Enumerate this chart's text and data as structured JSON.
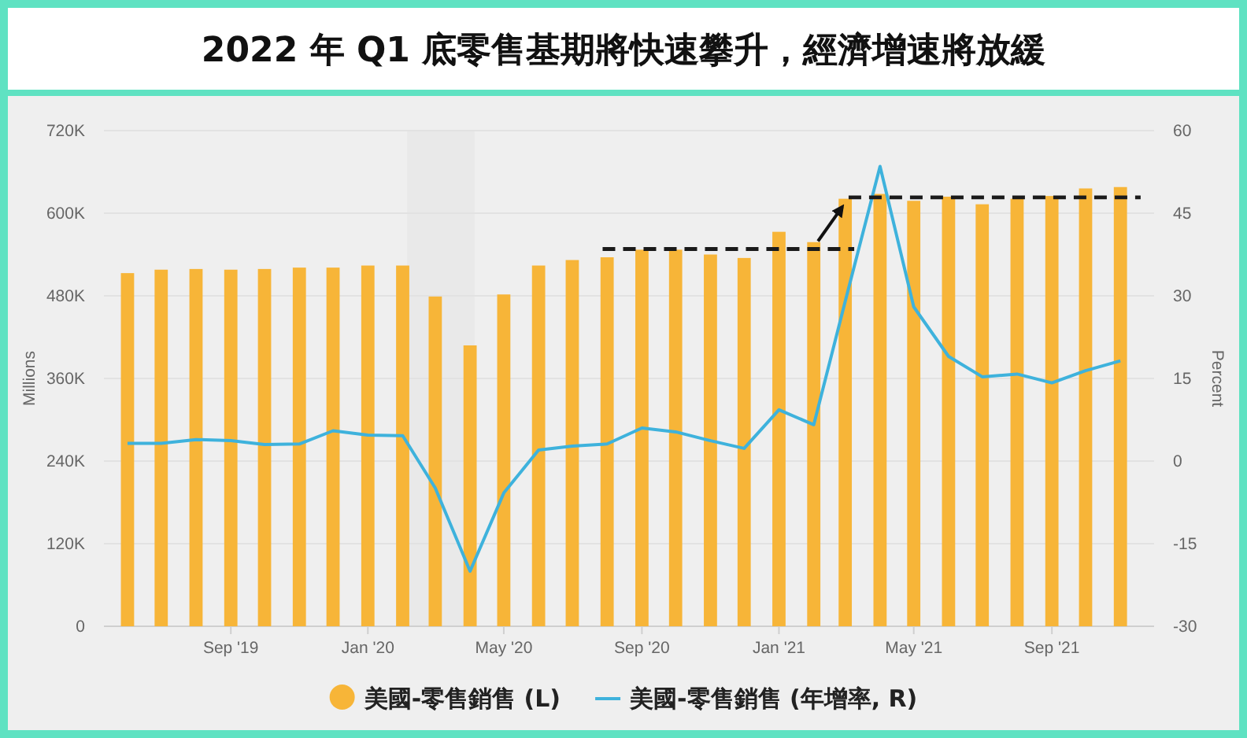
{
  "chart_data": {
    "type": "bar",
    "title": "2022 年 Q1 底零售基期將快速攀升，經濟增速將放緩",
    "ylabel": "Millions",
    "y2label": "Percent",
    "x": [
      "2019-06",
      "2019-07",
      "2019-08",
      "2019-09",
      "2019-10",
      "2019-11",
      "2019-12",
      "2020-01",
      "2020-02",
      "2020-03",
      "2020-04",
      "2020-05",
      "2020-06",
      "2020-07",
      "2020-08",
      "2020-09",
      "2020-10",
      "2020-11",
      "2020-12",
      "2021-01",
      "2021-02",
      "2021-03",
      "2021-04",
      "2021-05",
      "2021-06",
      "2021-07",
      "2021-08",
      "2021-09",
      "2021-10",
      "2021-11"
    ],
    "xlim": [
      "2019-05-11",
      "2021-12-01"
    ],
    "xticks": [
      {
        "value": "2019-09",
        "label": "Sep '19"
      },
      {
        "value": "2020-01",
        "label": "Jan '20"
      },
      {
        "value": "2020-05",
        "label": "May '20"
      },
      {
        "value": "2020-09",
        "label": "Sep '20"
      },
      {
        "value": "2021-01",
        "label": "Jan '21"
      },
      {
        "value": "2021-05",
        "label": "May '21"
      },
      {
        "value": "2021-09",
        "label": "Sep '21"
      }
    ],
    "ylim": [
      0,
      720000
    ],
    "yticks": [
      0,
      {
        "value": 120000,
        "label": "120K"
      },
      {
        "value": 240000,
        "label": "240K"
      },
      {
        "value": 360000,
        "label": "360K"
      },
      {
        "value": 480000,
        "label": "480K"
      },
      {
        "value": 600000,
        "label": "600K"
      },
      {
        "value": 720000,
        "label": "720K"
      }
    ],
    "y2lim": [
      -30,
      60
    ],
    "y2ticks": [
      -30,
      -15,
      0,
      15,
      30,
      45,
      60
    ],
    "grid": "y",
    "legend": "bottom",
    "bands": [
      {
        "axis": "x",
        "from": "2020-02-05",
        "to": "2020-04-05",
        "color": "#e9e9e9"
      }
    ],
    "series": [
      {
        "name": "美國-零售銷售 (L)",
        "color": "#f7b538",
        "values": [
          513000,
          518000,
          519000,
          518000,
          519000,
          521000,
          521000,
          524000,
          524000,
          479000,
          408000,
          482000,
          524000,
          532000,
          536000,
          547000,
          547000,
          540000,
          535000,
          573000,
          558000,
          621000,
          628000,
          618000,
          624000,
          613000,
          621000,
          625000,
          636000,
          638000
        ]
      },
      {
        "name": "美國-零售銷售 (年增率, R)",
        "type": "line",
        "axis": "y2",
        "color": "#3eb2dc",
        "values": [
          3.2,
          3.2,
          3.9,
          3.7,
          3.0,
          3.1,
          5.5,
          4.7,
          4.6,
          -4.9,
          -20,
          -5.8,
          2.0,
          2.7,
          3.1,
          6.0,
          5.3,
          3.7,
          2.3,
          9.3,
          6.6,
          29,
          53.5,
          28.0,
          19.0,
          15.3,
          15.8,
          14.2,
          16.4,
          18.2
        ]
      },
      {
        "type": "line",
        "color": "#1a1a1a",
        "line_style": "dashed",
        "x": [
          "2020-07-28",
          "2021-03-09"
        ],
        "values": [
          548000,
          548000
        ]
      },
      {
        "type": "line",
        "color": "#1a1a1a",
        "line_style": "dashed",
        "x": [
          "2021-03-04",
          "2021-11-19"
        ],
        "values": [
          623000,
          623000
        ]
      }
    ]
  }
}
